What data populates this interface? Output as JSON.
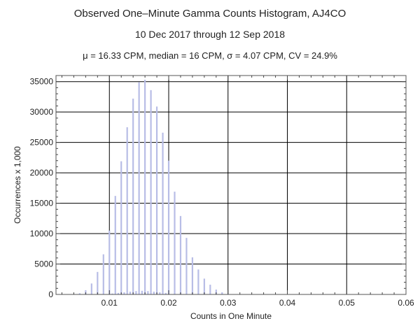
{
  "title": "Observed One–Minute Gamma Counts Histogram, AJ4CO",
  "subtitle": "10 Dec 2017 through 12 Sep 2018",
  "stats_line": "μ = 16.33 CPM,   median = 16 CPM,   σ = 4.07 CPM,   CV = 24.9%",
  "chart_data": {
    "type": "bar",
    "title": "Observed One–Minute Gamma Counts Histogram, AJ4CO",
    "subtitle": "10 Dec 2017 through 12 Sep 2018",
    "xlabel": "Counts in One Minute",
    "ylabel": "Occurrences x 1,000",
    "xlim": [
      0.001,
      0.06
    ],
    "ylim": [
      0,
      36000
    ],
    "x_ticks": [
      0.01,
      0.02,
      0.03,
      0.04,
      0.05,
      0.06
    ],
    "x_tick_labels": [
      "0.01",
      "0.02",
      "0.03",
      "0.04",
      "0.05",
      "0.06"
    ],
    "y_ticks": [
      0,
      5000,
      10000,
      15000,
      20000,
      25000,
      30000,
      35000
    ],
    "y_tick_labels": [
      "0",
      "5000",
      "10000",
      "15000",
      "20000",
      "25000",
      "30000",
      "35000"
    ],
    "grid": true,
    "colors": {
      "bars": "#b8bde6",
      "grid": "#000000",
      "frame": "#555555"
    },
    "series": [
      {
        "x": [
          0.005,
          0.006,
          0.007,
          0.008,
          0.009,
          0.01,
          0.011,
          0.012,
          0.013,
          0.014,
          0.015,
          0.016,
          0.017,
          0.018,
          0.019,
          0.02,
          0.021,
          0.022,
          0.023,
          0.024,
          0.025,
          0.026,
          0.027,
          0.028,
          0.029,
          0.03
        ],
        "values": [
          200,
          700,
          1800,
          3700,
          6600,
          10500,
          16200,
          21900,
          27500,
          32200,
          34900,
          35300,
          33600,
          30900,
          26600,
          22000,
          16900,
          12900,
          9300,
          6100,
          4100,
          2600,
          1600,
          800,
          350,
          120
        ]
      },
      {
        "x": [
          0.0105,
          0.0115,
          0.0125,
          0.0135,
          0.0145,
          0.0155,
          0.0165,
          0.0175,
          0.0185,
          0.0195
        ],
        "values": [
          150,
          250,
          350,
          450,
          550,
          600,
          550,
          450,
          350,
          250
        ]
      }
    ]
  }
}
